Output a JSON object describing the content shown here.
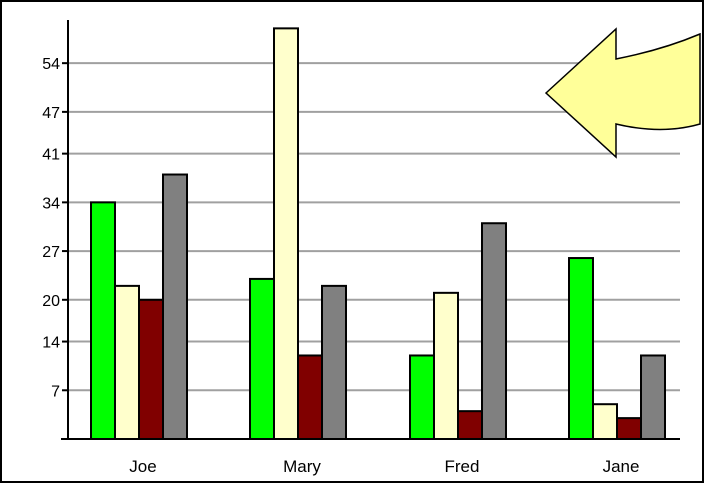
{
  "chart_data": {
    "type": "bar",
    "categories": [
      "Joe",
      "Mary",
      "Fred",
      "Jane"
    ],
    "series": [
      {
        "color": "#00ff00",
        "values": [
          34,
          23,
          12,
          26
        ]
      },
      {
        "color": "#ffffcc",
        "values": [
          22,
          59,
          21,
          5
        ]
      },
      {
        "color": "#800000",
        "values": [
          20,
          12,
          4,
          3
        ]
      },
      {
        "color": "#808080",
        "values": [
          38,
          22,
          31,
          12
        ]
      }
    ],
    "yticks": [
      "7",
      "14",
      "20",
      "27",
      "34",
      "41",
      "47",
      "54"
    ],
    "ytick_values": [
      7,
      14,
      20,
      27,
      34,
      41,
      47,
      54
    ],
    "ylim": [
      0,
      60
    ],
    "grid": true,
    "legend": "none",
    "title": "",
    "xlabel": "",
    "ylabel": ""
  },
  "annotation": {
    "type": "arrow",
    "direction": "left",
    "fill": "#ffff99",
    "stroke": "#000000"
  }
}
